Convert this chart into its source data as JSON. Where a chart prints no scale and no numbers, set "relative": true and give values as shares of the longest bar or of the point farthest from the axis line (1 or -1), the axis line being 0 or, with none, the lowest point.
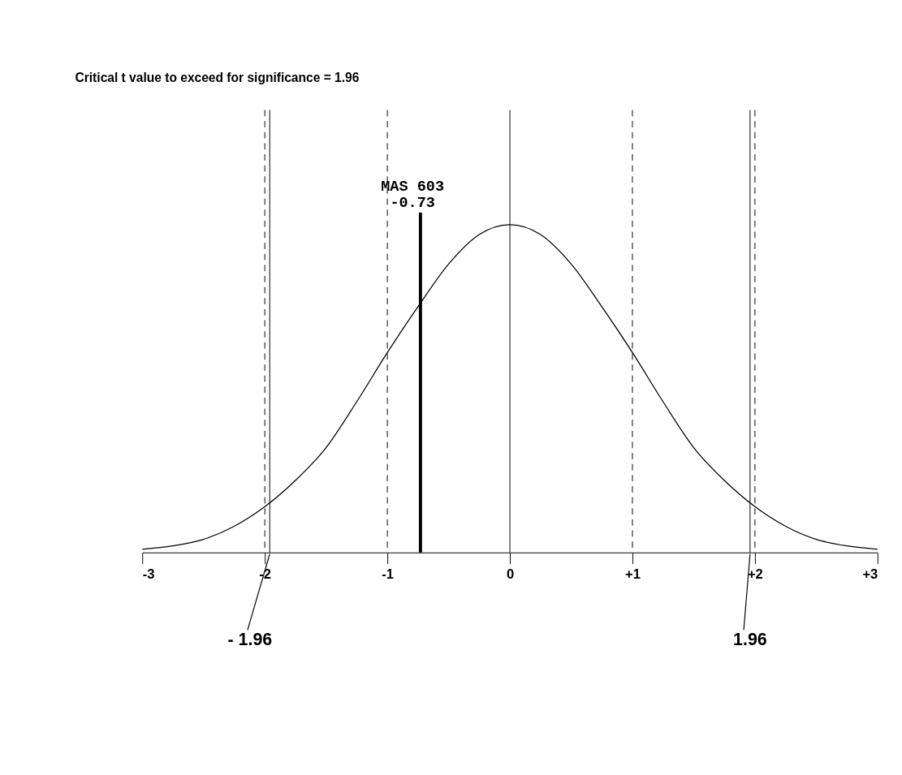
{
  "chart_data": {
    "type": "line",
    "relative": true,
    "x": [
      -3,
      -2.75,
      -2.5,
      -2.25,
      -2,
      -1.75,
      -1.5,
      -1.25,
      -1,
      -0.75,
      -0.5,
      -0.25,
      0,
      0.25,
      0.5,
      0.75,
      1,
      1.25,
      1.5,
      1.75,
      2,
      2.25,
      2.5,
      2.75,
      3
    ],
    "series": [
      {
        "color": "#000000",
        "values": [
          0.01,
          0.02,
          0.04,
          0.08,
          0.14,
          0.22,
          0.32,
          0.46,
          0.61,
          0.75,
          0.88,
          0.97,
          1,
          0.97,
          0.88,
          0.75,
          0.61,
          0.46,
          0.32,
          0.22,
          0.14,
          0.08,
          0.04,
          0.02,
          0.01
        ]
      }
    ],
    "xlim": [
      -3,
      3
    ],
    "xticks": [
      -3,
      -2,
      -1,
      0,
      {
        "value": 1,
        "label": "+1"
      },
      {
        "value": 2,
        "label": "+2"
      },
      {
        "value": 3,
        "label": "+3"
      }
    ],
    "tick_labels": "x",
    "grid": false,
    "marker": "none",
    "line_style": "solid",
    "ref_lines": [
      {
        "axis": "x",
        "value": 0,
        "color": "#000000",
        "line_style": "solid"
      },
      {
        "axis": "x",
        "value": -2,
        "color": "#000000",
        "line_style": "dashed"
      },
      {
        "axis": "x",
        "value": -1,
        "color": "#000000",
        "line_style": "dashed"
      },
      {
        "axis": "x",
        "value": 1,
        "color": "#000000",
        "line_style": "dashed"
      },
      {
        "axis": "x",
        "value": 2,
        "color": "#000000",
        "line_style": "dashed"
      },
      {
        "axis": "x",
        "value": -1.96,
        "color": "#000000",
        "line_style": "solid"
      },
      {
        "axis": "x",
        "value": 1.96,
        "color": "#000000",
        "line_style": "solid"
      },
      {
        "axis": "x",
        "value": -0.73,
        "label": "MAS 603\n-0.73",
        "color": "#000000",
        "line_style": "solid"
      }
    ],
    "annotations": [
      "Critical t value to exceed for significance = 1.96",
      {
        "text": "- 1.96",
        "x": -1.96,
        "y": 0
      },
      {
        "text": "1.96",
        "x": 1.96,
        "y": 0
      }
    ]
  }
}
